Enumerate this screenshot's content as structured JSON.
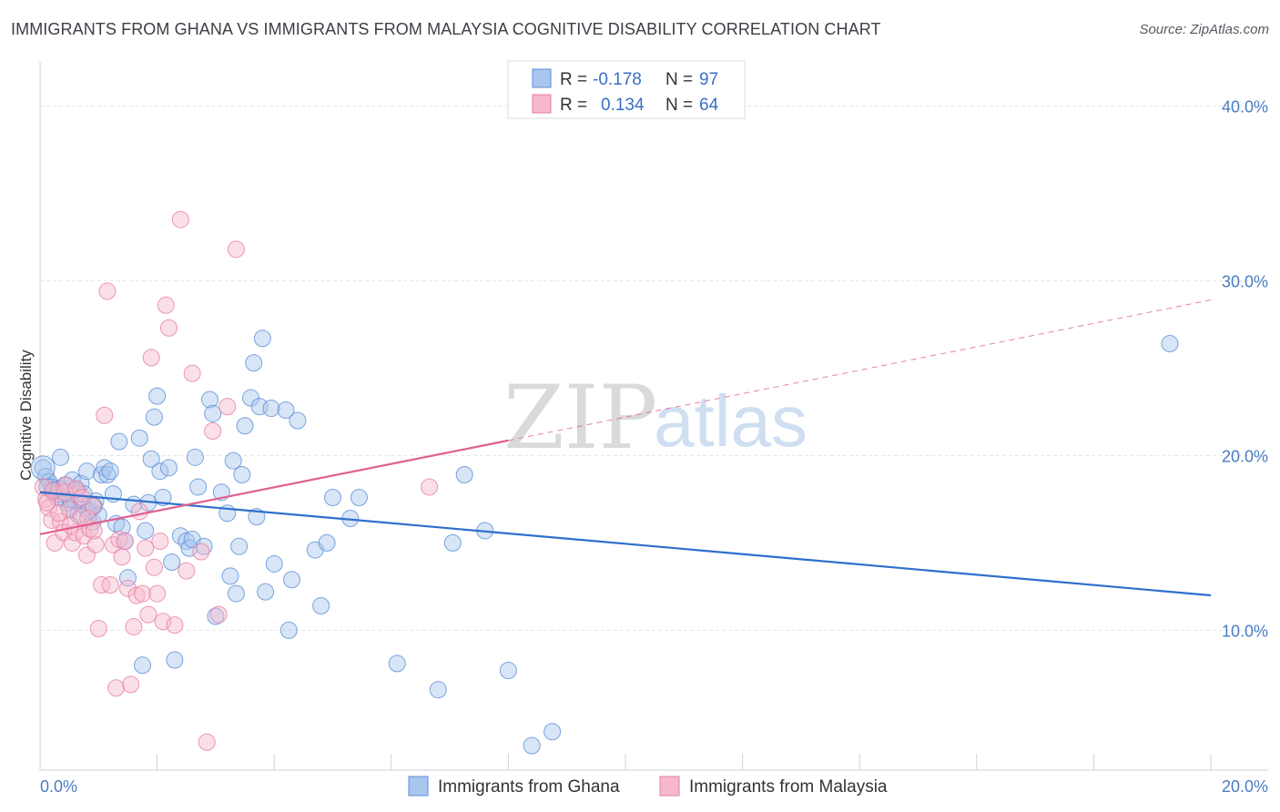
{
  "header": {
    "title": "IMMIGRANTS FROM GHANA VS IMMIGRANTS FROM MALAYSIA COGNITIVE DISABILITY CORRELATION CHART",
    "source": "Source: ZipAtlas.com"
  },
  "watermark": {
    "zip": "ZIP",
    "atlas": "atlas"
  },
  "colors": {
    "ghana_fill": "#a9c6ee",
    "ghana_stroke": "#5b8fd6",
    "ghana_line": "#2f6fcc",
    "malaysia_fill": "#f6b8cc",
    "malaysia_stroke": "#e57fa1",
    "malaysia_line": "#e0608f",
    "grid": "#e2e4e8",
    "tick_text": "#4a7cc4"
  },
  "legend": {
    "rows": [
      {
        "r_label": "R =",
        "r_value": "-0.178",
        "n_label": "N =",
        "n_value": "97"
      },
      {
        "r_label": "R =",
        "r_value": "0.134",
        "n_label": "N =",
        "n_value": "64"
      }
    ]
  },
  "bottom_legend": [
    "Immigrants from Ghana",
    "Immigrants from Malaysia"
  ],
  "chart_data": {
    "type": "scatter",
    "title": "IMMIGRANTS FROM GHANA VS IMMIGRANTS FROM MALAYSIA COGNITIVE DISABILITY CORRELATION CHART",
    "xlabel": "",
    "ylabel": "Cognitive Disability",
    "xlim": [
      0,
      20
    ],
    "ylim": [
      2,
      42
    ],
    "x_tick_labels": [
      "0.0%",
      "20.0%"
    ],
    "y_ticks": [
      10,
      20,
      30,
      40
    ],
    "y_tick_labels": [
      "10.0%",
      "20.0%",
      "30.0%",
      "40.0%"
    ],
    "grid": true,
    "legend_position": "top-center",
    "series": [
      {
        "name": "Immigrants from Ghana",
        "R": -0.178,
        "N": 97,
        "trend": {
          "x0": 0,
          "y0": 17.9,
          "x1": 20,
          "y1": 12.0,
          "dashed_from": null
        },
        "points": [
          [
            0.05,
            19.3
          ],
          [
            0.1,
            18.8
          ],
          [
            0.15,
            18.5
          ],
          [
            0.2,
            18.2
          ],
          [
            0.25,
            18.0
          ],
          [
            0.3,
            17.6
          ],
          [
            0.35,
            19.9
          ],
          [
            0.4,
            18.1
          ],
          [
            0.45,
            17.3
          ],
          [
            0.5,
            17.0
          ],
          [
            0.55,
            18.6
          ],
          [
            0.6,
            17.4
          ],
          [
            0.65,
            16.6
          ],
          [
            0.7,
            18.4
          ],
          [
            0.75,
            17.8
          ],
          [
            0.8,
            19.1
          ],
          [
            0.85,
            16.9
          ],
          [
            0.9,
            16.2
          ],
          [
            0.95,
            17.4
          ],
          [
            1.0,
            16.6
          ],
          [
            1.05,
            18.9
          ],
          [
            1.1,
            19.3
          ],
          [
            1.15,
            18.9
          ],
          [
            1.2,
            19.1
          ],
          [
            1.25,
            17.8
          ],
          [
            1.3,
            16.1
          ],
          [
            1.35,
            20.8
          ],
          [
            1.4,
            15.9
          ],
          [
            1.45,
            15.1
          ],
          [
            1.5,
            13.0
          ],
          [
            1.6,
            17.2
          ],
          [
            1.7,
            21.0
          ],
          [
            1.75,
            8.0
          ],
          [
            1.8,
            15.7
          ],
          [
            1.85,
            17.3
          ],
          [
            1.9,
            19.8
          ],
          [
            1.95,
            22.2
          ],
          [
            2.0,
            23.4
          ],
          [
            2.05,
            19.1
          ],
          [
            2.1,
            17.6
          ],
          [
            2.2,
            19.3
          ],
          [
            2.25,
            13.9
          ],
          [
            2.3,
            8.3
          ],
          [
            2.4,
            15.4
          ],
          [
            2.5,
            15.1
          ],
          [
            2.55,
            14.7
          ],
          [
            2.6,
            15.2
          ],
          [
            2.65,
            19.9
          ],
          [
            2.7,
            18.2
          ],
          [
            2.8,
            14.8
          ],
          [
            2.9,
            23.2
          ],
          [
            2.95,
            22.4
          ],
          [
            3.0,
            10.8
          ],
          [
            3.1,
            17.9
          ],
          [
            3.2,
            16.7
          ],
          [
            3.25,
            13.1
          ],
          [
            3.3,
            19.7
          ],
          [
            3.35,
            12.1
          ],
          [
            3.4,
            14.8
          ],
          [
            3.45,
            18.9
          ],
          [
            3.5,
            21.7
          ],
          [
            3.6,
            23.3
          ],
          [
            3.65,
            25.3
          ],
          [
            3.7,
            16.5
          ],
          [
            3.75,
            22.8
          ],
          [
            3.8,
            26.7
          ],
          [
            3.85,
            12.2
          ],
          [
            3.95,
            22.7
          ],
          [
            4.0,
            13.8
          ],
          [
            4.2,
            22.6
          ],
          [
            4.25,
            10.0
          ],
          [
            4.3,
            12.9
          ],
          [
            4.4,
            22.0
          ],
          [
            4.7,
            14.6
          ],
          [
            4.8,
            11.4
          ],
          [
            4.9,
            15.0
          ],
          [
            5.0,
            17.6
          ],
          [
            5.3,
            16.4
          ],
          [
            5.45,
            17.6
          ],
          [
            6.1,
            8.1
          ],
          [
            6.8,
            6.6
          ],
          [
            7.05,
            15.0
          ],
          [
            7.25,
            18.9
          ],
          [
            7.6,
            15.7
          ],
          [
            8.0,
            7.7
          ],
          [
            8.4,
            3.4
          ],
          [
            8.75,
            4.2
          ],
          [
            19.3,
            26.4
          ],
          [
            0.12,
            18.2
          ],
          [
            0.22,
            17.9
          ],
          [
            0.32,
            18.1
          ],
          [
            0.42,
            18.3
          ],
          [
            0.52,
            17.5
          ],
          [
            0.62,
            18.0
          ],
          [
            0.72,
            17.2
          ],
          [
            0.82,
            16.8
          ],
          [
            0.92,
            17.1
          ]
        ]
      },
      {
        "name": "Immigrants from Malaysia",
        "R": 0.134,
        "N": 64,
        "trend": {
          "x0": 0,
          "y0": 15.5,
          "x1": 20,
          "y1": 28.9,
          "dashed_from": 8
        },
        "points": [
          [
            0.05,
            18.2
          ],
          [
            0.1,
            17.5
          ],
          [
            0.15,
            17.0
          ],
          [
            0.2,
            16.3
          ],
          [
            0.25,
            15.0
          ],
          [
            0.3,
            17.8
          ],
          [
            0.35,
            16.2
          ],
          [
            0.4,
            15.6
          ],
          [
            0.45,
            18.3
          ],
          [
            0.5,
            16.9
          ],
          [
            0.55,
            15.0
          ],
          [
            0.6,
            15.6
          ],
          [
            0.65,
            17.8
          ],
          [
            0.7,
            16.5
          ],
          [
            0.75,
            15.4
          ],
          [
            0.8,
            14.3
          ],
          [
            0.85,
            15.8
          ],
          [
            0.9,
            17.1
          ],
          [
            0.95,
            14.9
          ],
          [
            1.0,
            10.1
          ],
          [
            1.05,
            12.6
          ],
          [
            1.1,
            22.3
          ],
          [
            1.15,
            29.4
          ],
          [
            1.2,
            12.6
          ],
          [
            1.25,
            14.9
          ],
          [
            1.3,
            6.7
          ],
          [
            1.35,
            15.2
          ],
          [
            1.4,
            14.2
          ],
          [
            1.45,
            15.1
          ],
          [
            1.5,
            12.4
          ],
          [
            1.55,
            6.9
          ],
          [
            1.6,
            10.2
          ],
          [
            1.65,
            12.0
          ],
          [
            1.7,
            16.8
          ],
          [
            1.75,
            12.1
          ],
          [
            1.8,
            14.7
          ],
          [
            1.85,
            10.9
          ],
          [
            1.9,
            25.6
          ],
          [
            1.95,
            13.6
          ],
          [
            2.0,
            12.1
          ],
          [
            2.05,
            15.1
          ],
          [
            2.1,
            10.5
          ],
          [
            2.15,
            28.6
          ],
          [
            2.2,
            27.3
          ],
          [
            2.3,
            10.3
          ],
          [
            2.4,
            33.5
          ],
          [
            2.5,
            13.4
          ],
          [
            2.6,
            24.7
          ],
          [
            2.75,
            14.5
          ],
          [
            2.85,
            3.6
          ],
          [
            2.95,
            21.4
          ],
          [
            3.05,
            10.9
          ],
          [
            3.2,
            22.8
          ],
          [
            3.35,
            31.8
          ],
          [
            6.65,
            18.2
          ],
          [
            0.12,
            17.3
          ],
          [
            0.22,
            18.0
          ],
          [
            0.32,
            16.7
          ],
          [
            0.42,
            17.9
          ],
          [
            0.52,
            16.0
          ],
          [
            0.62,
            18.1
          ],
          [
            0.72,
            17.6
          ],
          [
            0.82,
            16.4
          ],
          [
            0.92,
            15.7
          ]
        ]
      }
    ]
  }
}
